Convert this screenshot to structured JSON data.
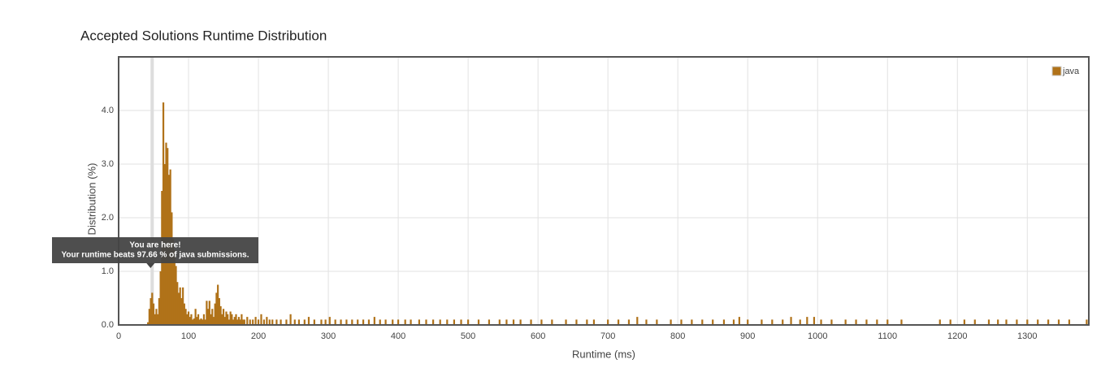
{
  "chart_data": {
    "type": "bar",
    "title": "Accepted Solutions Runtime Distribution",
    "x_label": "Runtime (ms)",
    "y_label": "Distribution (%)",
    "xlim": [
      0,
      1388
    ],
    "ylim": [
      0,
      5
    ],
    "xticks": [
      0,
      100,
      200,
      300,
      400,
      500,
      600,
      700,
      800,
      900,
      1000,
      1100,
      1200,
      1300
    ],
    "yticks": [
      {
        "value": 0,
        "label": "0.0"
      },
      {
        "value": 1,
        "label": "1.0"
      },
      {
        "value": 2,
        "label": "2.0"
      },
      {
        "value": 3,
        "label": "3.0"
      },
      {
        "value": 4,
        "label": "4.0"
      }
    ],
    "grid": true,
    "legend": "top-right",
    "highlight_x": 48,
    "tooltip": [
      "You are here!",
      "Your runtime beats 97.66 % of java submissions."
    ],
    "series": [
      {
        "name": "java",
        "color": "#b07219",
        "x": [
          42,
          44,
          46,
          48,
          50,
          52,
          54,
          56,
          58,
          60,
          62,
          64,
          66,
          68,
          70,
          72,
          74,
          76,
          78,
          80,
          82,
          84,
          86,
          88,
          90,
          92,
          94,
          96,
          98,
          100,
          102,
          104,
          106,
          108,
          110,
          112,
          114,
          116,
          118,
          120,
          122,
          124,
          126,
          128,
          130,
          132,
          134,
          136,
          138,
          140,
          142,
          144,
          146,
          148,
          150,
          152,
          154,
          156,
          158,
          160,
          162,
          164,
          166,
          168,
          170,
          172,
          174,
          176,
          178,
          180,
          184,
          188,
          192,
          196,
          200,
          204,
          208,
          212,
          216,
          220,
          226,
          232,
          240,
          246,
          252,
          258,
          266,
          272,
          280,
          290,
          296,
          302,
          310,
          318,
          326,
          334,
          342,
          350,
          358,
          366,
          374,
          382,
          392,
          400,
          410,
          418,
          430,
          440,
          450,
          460,
          470,
          480,
          490,
          500,
          515,
          530,
          545,
          555,
          565,
          575,
          590,
          605,
          620,
          640,
          655,
          670,
          680,
          700,
          715,
          730,
          742,
          755,
          770,
          790,
          805,
          820,
          835,
          850,
          866,
          880,
          888,
          900,
          920,
          935,
          950,
          962,
          975,
          985,
          995,
          1005,
          1020,
          1040,
          1055,
          1070,
          1085,
          1100,
          1120,
          1175,
          1190,
          1210,
          1225,
          1245,
          1258,
          1270,
          1285,
          1300,
          1315,
          1330,
          1345,
          1360,
          1385
        ],
        "values": [
          0.05,
          0.3,
          0.5,
          0.6,
          0.4,
          0.2,
          0.3,
          0.2,
          0.5,
          1.0,
          2.5,
          4.15,
          3.0,
          3.4,
          3.3,
          2.8,
          2.9,
          2.1,
          1.6,
          1.4,
          1.1,
          0.8,
          0.6,
          0.7,
          0.5,
          0.7,
          0.4,
          0.3,
          0.2,
          0.25,
          0.15,
          0.2,
          0.1,
          0.12,
          0.3,
          0.15,
          0.2,
          0.1,
          0.12,
          0.1,
          0.2,
          0.1,
          0.45,
          0.3,
          0.45,
          0.2,
          0.3,
          0.15,
          0.4,
          0.6,
          0.75,
          0.5,
          0.35,
          0.2,
          0.3,
          0.15,
          0.25,
          0.2,
          0.1,
          0.25,
          0.2,
          0.1,
          0.15,
          0.2,
          0.1,
          0.15,
          0.1,
          0.2,
          0.1,
          0.1,
          0.15,
          0.1,
          0.1,
          0.15,
          0.1,
          0.2,
          0.1,
          0.15,
          0.1,
          0.1,
          0.1,
          0.1,
          0.1,
          0.2,
          0.1,
          0.1,
          0.1,
          0.15,
          0.1,
          0.1,
          0.1,
          0.15,
          0.1,
          0.1,
          0.1,
          0.1,
          0.1,
          0.1,
          0.1,
          0.15,
          0.1,
          0.1,
          0.1,
          0.1,
          0.1,
          0.1,
          0.1,
          0.1,
          0.1,
          0.1,
          0.1,
          0.1,
          0.1,
          0.1,
          0.1,
          0.1,
          0.1,
          0.1,
          0.1,
          0.1,
          0.1,
          0.1,
          0.1,
          0.1,
          0.1,
          0.1,
          0.1,
          0.1,
          0.1,
          0.1,
          0.15,
          0.1,
          0.1,
          0.1,
          0.1,
          0.1,
          0.1,
          0.1,
          0.1,
          0.1,
          0.15,
          0.1,
          0.1,
          0.1,
          0.1,
          0.15,
          0.1,
          0.15,
          0.15,
          0.1,
          0.1,
          0.1,
          0.1,
          0.1,
          0.1,
          0.1,
          0.1,
          0.1,
          0.1,
          0.1,
          0.1,
          0.1,
          0.1,
          0.1,
          0.1,
          0.1,
          0.1,
          0.1,
          0.1,
          0.1,
          0.1
        ]
      }
    ]
  }
}
